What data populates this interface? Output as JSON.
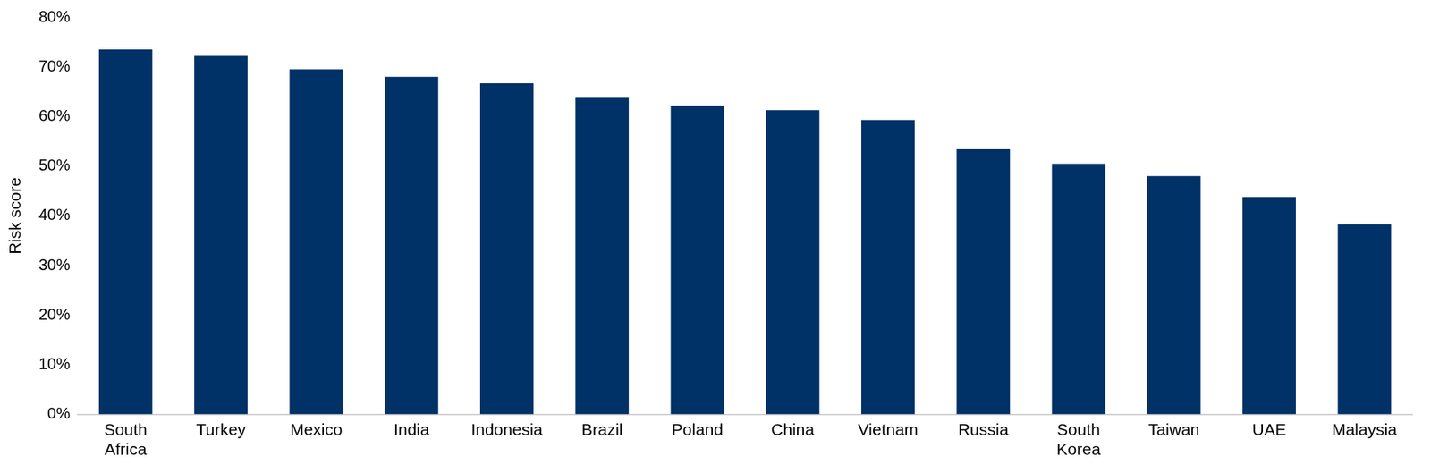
{
  "chart_data": {
    "type": "bar",
    "y_label": "Risk score",
    "categories": [
      "South Africa",
      "Turkey",
      "Mexico",
      "India",
      "Indonesia",
      "Brazil",
      "Poland",
      "China",
      "Vietnam",
      "Russia",
      "South Korea",
      "Taiwan",
      "UAE",
      "Malaysia"
    ],
    "values": [
      73.5,
      72.2,
      69.5,
      68,
      66.7,
      63.8,
      62.2,
      61.3,
      59.3,
      53.4,
      50.5,
      48,
      43.8,
      38.3
    ],
    "color": "#003167",
    "ylim": [
      0,
      80
    ],
    "yticks": [
      {
        "value": 0,
        "label": "0%"
      },
      {
        "value": 10,
        "label": "10%"
      },
      {
        "value": 20,
        "label": "20%"
      },
      {
        "value": 30,
        "label": "30%"
      },
      {
        "value": 40,
        "label": "40%"
      },
      {
        "value": 50,
        "label": "50%"
      },
      {
        "value": 60,
        "label": "60%"
      },
      {
        "value": 70,
        "label": "70%"
      },
      {
        "value": 80,
        "label": "80%"
      }
    ],
    "grid": false
  }
}
